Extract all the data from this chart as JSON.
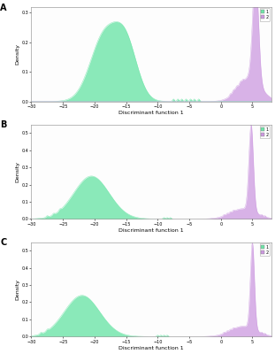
{
  "panels": [
    "A",
    "B",
    "C"
  ],
  "green_color": "#6ee5a8",
  "purple_color": "#cc99e0",
  "xlabel": "Discriminant function 1",
  "ylabel": "Density",
  "legend_labels": [
    "1",
    "2"
  ],
  "bg_color": "#f8f8f8",
  "panels_data": {
    "A": {
      "green_components": [
        {
          "mean": -18.5,
          "std": 2.2,
          "weight": 0.55
        },
        {
          "mean": -15.0,
          "std": 1.8,
          "weight": 0.45
        }
      ],
      "green_peak": 0.27,
      "green_outliers": [
        -7.5,
        -6.8,
        -6.2,
        -5.5,
        -4.8,
        -4.2,
        -3.5
      ],
      "purple_broad_mean": 4.5,
      "purple_broad_std": 1.8,
      "purple_broad_scale": 0.08,
      "purple_sharp_mean": 5.5,
      "purple_sharp_std": 0.45,
      "purple_sharp_scale": 0.37,
      "purple_outliers": [
        1.5,
        1.9,
        2.1,
        2.4,
        2.6,
        3.0,
        3.2,
        3.5
      ],
      "xlim": [
        -30,
        8
      ],
      "ylim": [
        0,
        0.32
      ],
      "yticks": [
        0.0,
        0.1,
        0.2,
        0.3
      ]
    },
    "B": {
      "green_components": [
        {
          "mean": -20.5,
          "std": 2.8,
          "weight": 1.0
        }
      ],
      "green_peak": 0.25,
      "green_outliers": [
        -27.5,
        -26.5,
        -25.5,
        -9.0,
        -8.5,
        -8.0
      ],
      "purple_broad_mean": 3.5,
      "purple_broad_std": 2.0,
      "purple_broad_scale": 0.06,
      "purple_sharp_mean": 4.8,
      "purple_sharp_std": 0.35,
      "purple_sharp_scale": 0.5,
      "purple_outliers": [
        0.5,
        1.0,
        1.5,
        2.0,
        6.5,
        7.0
      ],
      "xlim": [
        -30,
        8
      ],
      "ylim": [
        0,
        0.55
      ],
      "yticks": [
        0.0,
        0.1,
        0.2,
        0.3,
        0.4,
        0.5
      ]
    },
    "C": {
      "green_components": [
        {
          "mean": -22.0,
          "std": 2.8,
          "weight": 1.0
        }
      ],
      "green_peak": 0.24,
      "green_outliers": [
        -28.5,
        -27.5,
        -10.0,
        -9.5,
        -9.0,
        -8.5
      ],
      "purple_broad_mean": 3.5,
      "purple_broad_std": 2.0,
      "purple_broad_scale": 0.06,
      "purple_sharp_mean": 5.0,
      "purple_sharp_std": 0.32,
      "purple_sharp_scale": 0.5,
      "purple_outliers": [
        0.5,
        1.0,
        1.5,
        2.0,
        6.5,
        7.0
      ],
      "xlim": [
        -30,
        8
      ],
      "ylim": [
        0,
        0.55
      ],
      "yticks": [
        0.0,
        0.1,
        0.2,
        0.3,
        0.4,
        0.5
      ]
    }
  }
}
